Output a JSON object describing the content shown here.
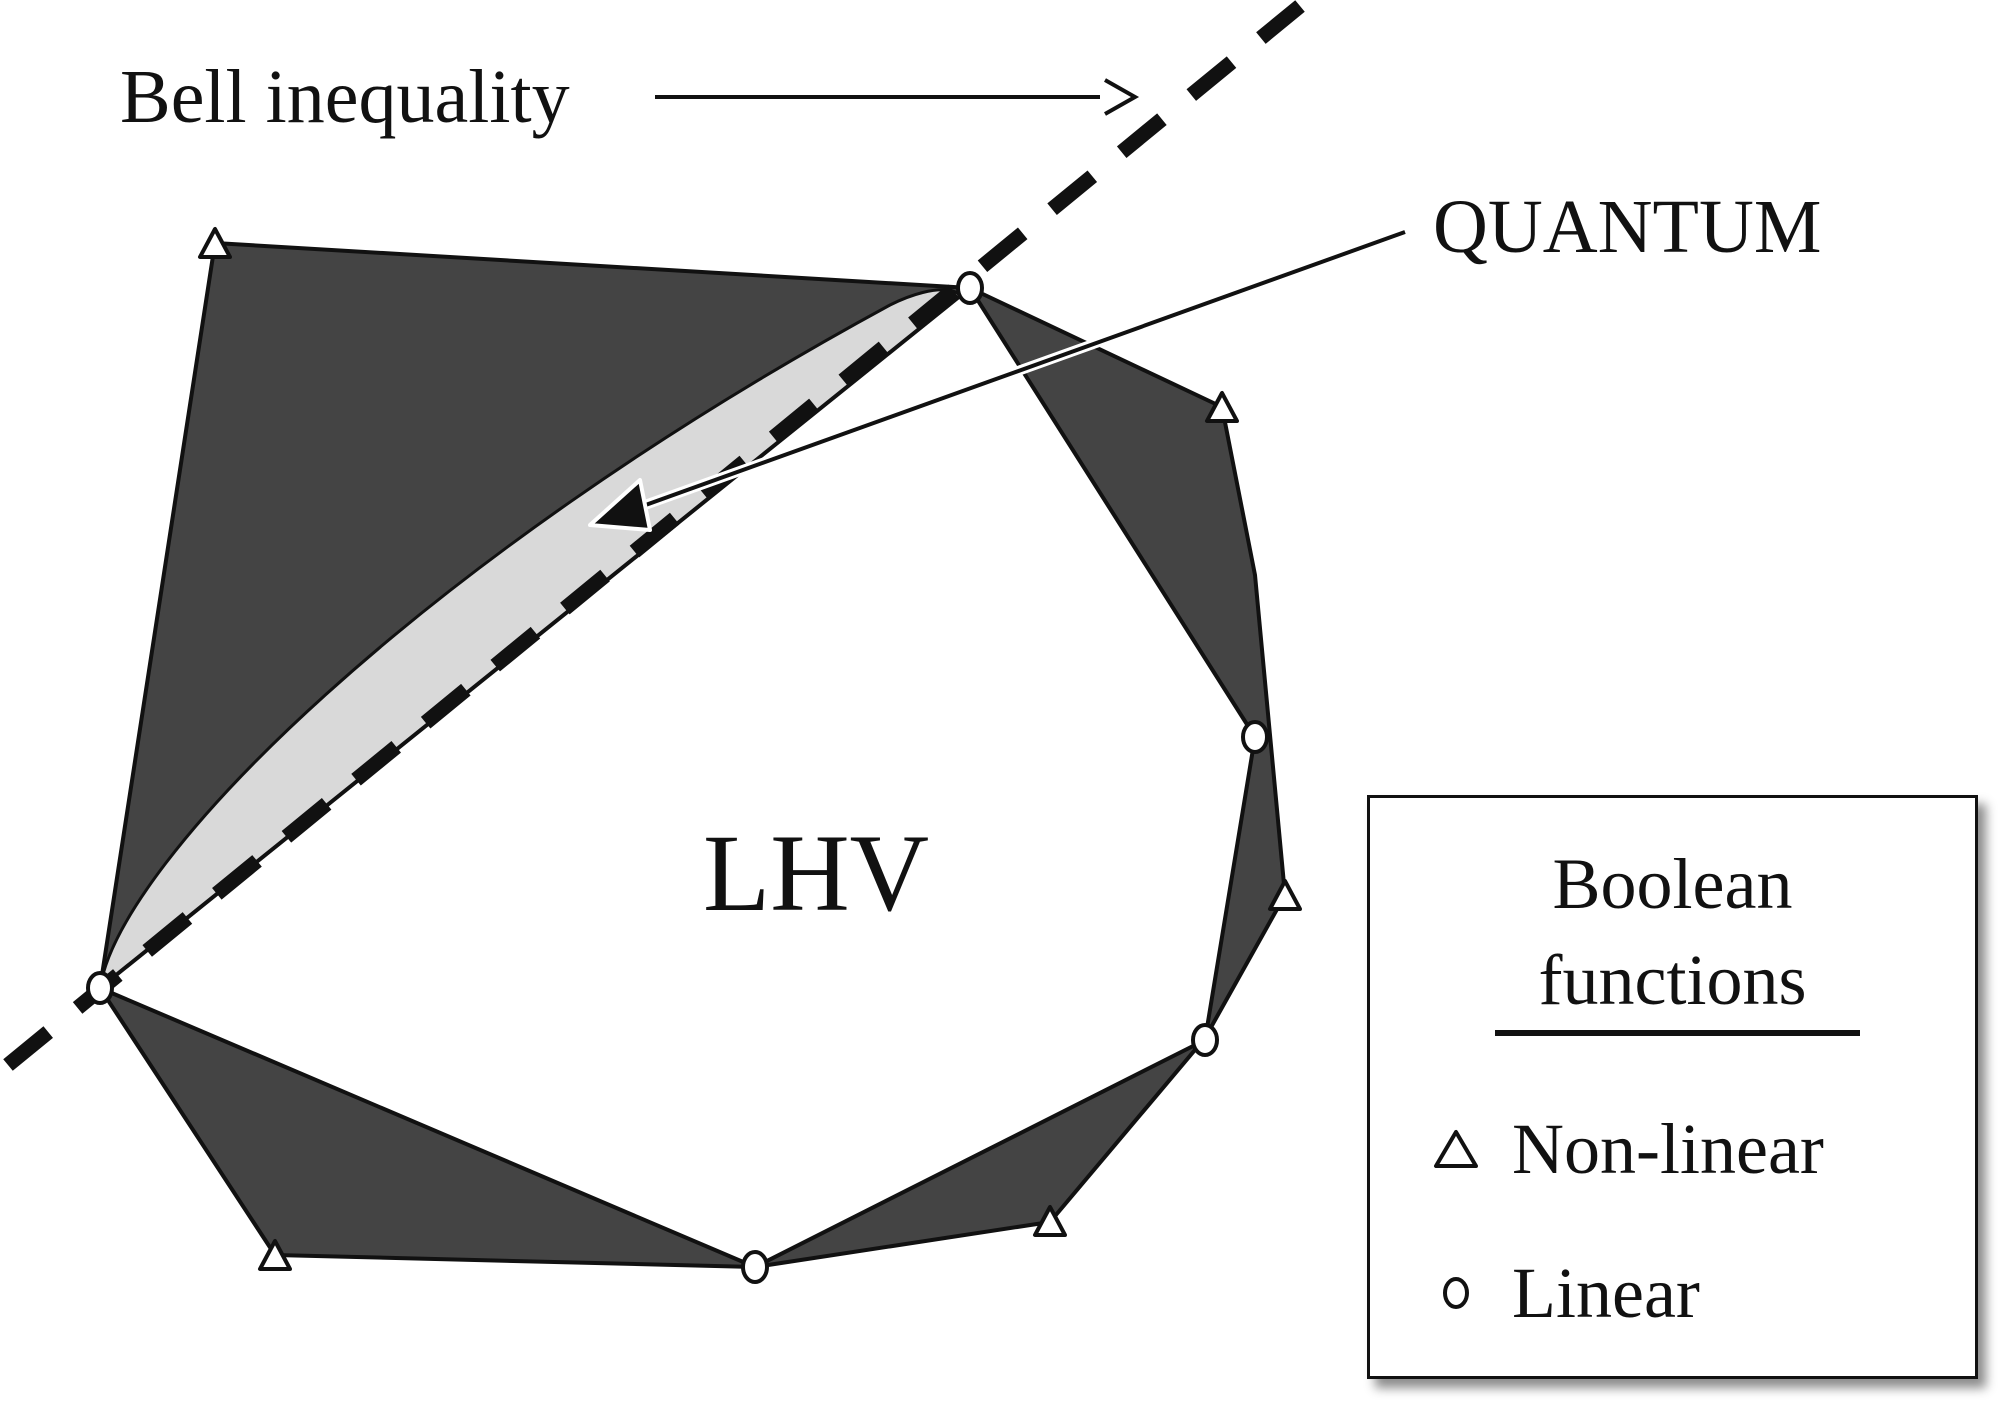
{
  "labels": {
    "bell_inequality": "Bell inequality",
    "quantum": "QUANTUM",
    "lhv": "LHV"
  },
  "legend": {
    "title_line1": "Boolean",
    "title_line2": "functions",
    "items": [
      {
        "marker": "triangle",
        "label": "Non-linear"
      },
      {
        "marker": "circle",
        "label": "Linear"
      }
    ]
  },
  "colors": {
    "outer_polytope": "#444444",
    "quantum_region": "#d9d9d9",
    "inner_polytope": "#ffffff",
    "stroke": "#111111"
  }
}
